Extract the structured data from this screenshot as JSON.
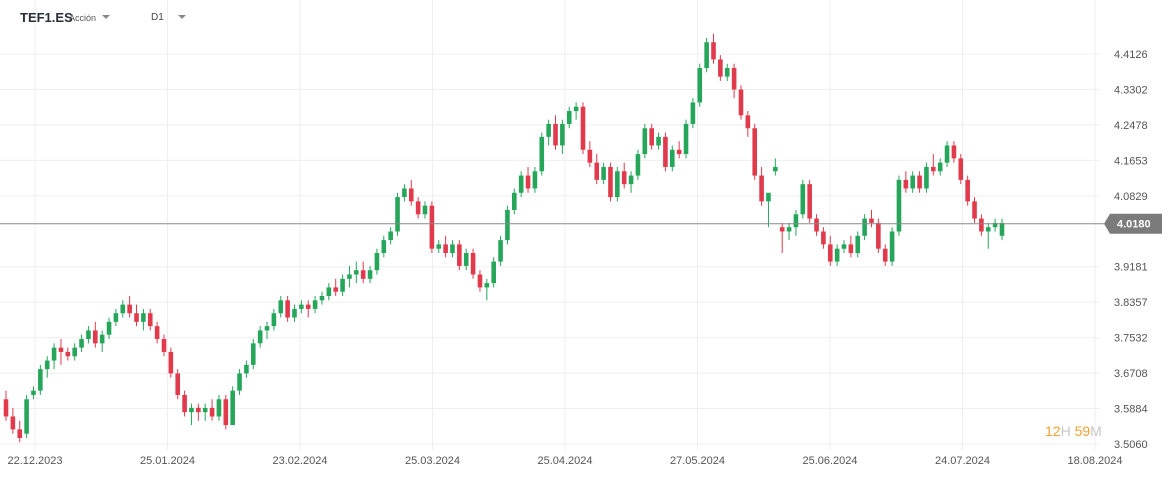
{
  "header": {
    "symbol": "TEF1.ES",
    "asset_type": "Acción",
    "timeframe": "D1"
  },
  "timer": {
    "hours": "12",
    "hours_label": "H",
    "minutes": "59",
    "minutes_label": "M"
  },
  "colors": {
    "up": "#26a65b",
    "down": "#e03a4c",
    "grid": "#efefef",
    "price_line": "#8a8a8a",
    "price_tag": "#7b7b7b",
    "axis_text": "#555555"
  },
  "chart_data": {
    "type": "candlestick",
    "ylim": [
      3.48,
      4.48
    ],
    "y_ticks": [
      "4.4126",
      "4.3302",
      "4.2478",
      "4.1653",
      "4.0829",
      "3.9181",
      "3.8357",
      "3.7532",
      "3.6708",
      "3.5884",
      "3.5060"
    ],
    "x_tick_labels": [
      "22.12.2023",
      "25.01.2024",
      "23.02.2024",
      "25.03.2024",
      "25.04.2024",
      "27.05.2024",
      "25.06.2024",
      "24.07.2024",
      "18.08.2024"
    ],
    "last_price": 4.018,
    "last_price_label": "4.0180",
    "candles": [
      [
        3.61,
        3.63,
        3.56,
        3.57
      ],
      [
        3.57,
        3.59,
        3.53,
        3.54
      ],
      [
        3.54,
        3.56,
        3.51,
        3.52
      ],
      [
        3.53,
        3.62,
        3.52,
        3.61
      ],
      [
        3.62,
        3.64,
        3.61,
        3.63
      ],
      [
        3.63,
        3.69,
        3.62,
        3.68
      ],
      [
        3.68,
        3.71,
        3.66,
        3.7
      ],
      [
        3.7,
        3.74,
        3.68,
        3.73
      ],
      [
        3.73,
        3.75,
        3.69,
        3.72
      ],
      [
        3.72,
        3.73,
        3.7,
        3.71
      ],
      [
        3.71,
        3.74,
        3.7,
        3.73
      ],
      [
        3.73,
        3.76,
        3.72,
        3.75
      ],
      [
        3.75,
        3.78,
        3.74,
        3.77
      ],
      [
        3.77,
        3.79,
        3.73,
        3.74
      ],
      [
        3.74,
        3.77,
        3.72,
        3.76
      ],
      [
        3.76,
        3.8,
        3.75,
        3.79
      ],
      [
        3.79,
        3.82,
        3.78,
        3.81
      ],
      [
        3.81,
        3.84,
        3.8,
        3.83
      ],
      [
        3.83,
        3.85,
        3.8,
        3.81
      ],
      [
        3.81,
        3.83,
        3.78,
        3.79
      ],
      [
        3.79,
        3.82,
        3.77,
        3.81
      ],
      [
        3.81,
        3.82,
        3.77,
        3.78
      ],
      [
        3.78,
        3.79,
        3.74,
        3.75
      ],
      [
        3.75,
        3.76,
        3.71,
        3.72
      ],
      [
        3.72,
        3.73,
        3.66,
        3.67
      ],
      [
        3.67,
        3.68,
        3.61,
        3.62
      ],
      [
        3.62,
        3.63,
        3.57,
        3.58
      ],
      [
        3.58,
        3.6,
        3.55,
        3.59
      ],
      [
        3.59,
        3.6,
        3.56,
        3.58
      ],
      [
        3.58,
        3.6,
        3.56,
        3.59
      ],
      [
        3.59,
        3.61,
        3.56,
        3.57
      ],
      [
        3.57,
        3.62,
        3.56,
        3.61
      ],
      [
        3.61,
        3.62,
        3.54,
        3.55
      ],
      [
        3.55,
        3.64,
        3.55,
        3.63
      ],
      [
        3.63,
        3.68,
        3.62,
        3.67
      ],
      [
        3.67,
        3.7,
        3.66,
        3.69
      ],
      [
        3.69,
        3.75,
        3.68,
        3.74
      ],
      [
        3.74,
        3.78,
        3.73,
        3.77
      ],
      [
        3.77,
        3.79,
        3.75,
        3.78
      ],
      [
        3.78,
        3.82,
        3.77,
        3.81
      ],
      [
        3.81,
        3.85,
        3.8,
        3.84
      ],
      [
        3.84,
        3.85,
        3.79,
        3.8
      ],
      [
        3.8,
        3.83,
        3.79,
        3.82
      ],
      [
        3.82,
        3.84,
        3.81,
        3.83
      ],
      [
        3.83,
        3.84,
        3.8,
        3.82
      ],
      [
        3.82,
        3.85,
        3.81,
        3.84
      ],
      [
        3.84,
        3.86,
        3.83,
        3.85
      ],
      [
        3.85,
        3.88,
        3.84,
        3.87
      ],
      [
        3.87,
        3.89,
        3.85,
        3.86
      ],
      [
        3.86,
        3.9,
        3.85,
        3.89
      ],
      [
        3.89,
        3.92,
        3.87,
        3.9
      ],
      [
        3.9,
        3.93,
        3.88,
        3.91
      ],
      [
        3.91,
        3.93,
        3.88,
        3.89
      ],
      [
        3.89,
        3.92,
        3.88,
        3.91
      ],
      [
        3.91,
        3.96,
        3.9,
        3.95
      ],
      [
        3.95,
        3.99,
        3.94,
        3.98
      ],
      [
        3.98,
        4.01,
        3.97,
        4.0
      ],
      [
        4.0,
        4.09,
        3.99,
        4.08
      ],
      [
        4.08,
        4.11,
        4.07,
        4.1
      ],
      [
        4.1,
        4.12,
        4.06,
        4.07
      ],
      [
        4.07,
        4.08,
        4.03,
        4.04
      ],
      [
        4.04,
        4.07,
        4.03,
        4.06
      ],
      [
        4.06,
        4.07,
        3.95,
        3.96
      ],
      [
        3.96,
        3.98,
        3.95,
        3.97
      ],
      [
        3.97,
        3.99,
        3.94,
        3.95
      ],
      [
        3.95,
        3.98,
        3.94,
        3.97
      ],
      [
        3.97,
        3.98,
        3.91,
        3.92
      ],
      [
        3.92,
        3.96,
        3.91,
        3.95
      ],
      [
        3.95,
        3.96,
        3.89,
        3.9
      ],
      [
        3.9,
        3.91,
        3.86,
        3.87
      ],
      [
        3.87,
        3.89,
        3.84,
        3.88
      ],
      [
        3.88,
        3.94,
        3.87,
        3.93
      ],
      [
        3.93,
        3.99,
        3.92,
        3.98
      ],
      [
        3.98,
        4.06,
        3.97,
        4.05
      ],
      [
        4.05,
        4.1,
        4.04,
        4.09
      ],
      [
        4.09,
        4.14,
        4.08,
        4.13
      ],
      [
        4.13,
        4.15,
        4.09,
        4.1
      ],
      [
        4.1,
        4.15,
        4.09,
        4.14
      ],
      [
        4.14,
        4.23,
        4.13,
        4.22
      ],
      [
        4.22,
        4.26,
        4.2,
        4.25
      ],
      [
        4.25,
        4.27,
        4.19,
        4.2
      ],
      [
        4.2,
        4.26,
        4.18,
        4.25
      ],
      [
        4.25,
        4.29,
        4.24,
        4.28
      ],
      [
        4.28,
        4.3,
        4.26,
        4.29
      ],
      [
        4.29,
        4.3,
        4.18,
        4.19
      ],
      [
        4.19,
        4.21,
        4.15,
        4.16
      ],
      [
        4.16,
        4.18,
        4.11,
        4.12
      ],
      [
        4.12,
        4.16,
        4.11,
        4.15
      ],
      [
        4.15,
        4.16,
        4.07,
        4.08
      ],
      [
        4.08,
        4.15,
        4.07,
        4.14
      ],
      [
        4.14,
        4.16,
        4.1,
        4.11
      ],
      [
        4.11,
        4.14,
        4.09,
        4.13
      ],
      [
        4.13,
        4.19,
        4.12,
        4.18
      ],
      [
        4.18,
        4.25,
        4.17,
        4.24
      ],
      [
        4.24,
        4.25,
        4.19,
        4.2
      ],
      [
        4.2,
        4.23,
        4.19,
        4.22
      ],
      [
        4.22,
        4.23,
        4.14,
        4.15
      ],
      [
        4.15,
        4.2,
        4.14,
        4.19
      ],
      [
        4.19,
        4.21,
        4.17,
        4.18
      ],
      [
        4.18,
        4.26,
        4.17,
        4.25
      ],
      [
        4.25,
        4.31,
        4.24,
        4.3
      ],
      [
        4.3,
        4.39,
        4.29,
        4.38
      ],
      [
        4.38,
        4.45,
        4.37,
        4.44
      ],
      [
        4.44,
        4.46,
        4.39,
        4.4
      ],
      [
        4.4,
        4.41,
        4.35,
        4.36
      ],
      [
        4.36,
        4.39,
        4.35,
        4.38
      ],
      [
        4.38,
        4.39,
        4.31,
        4.33
      ],
      [
        4.33,
        4.34,
        4.26,
        4.27
      ],
      [
        4.27,
        4.28,
        4.22,
        4.24
      ],
      [
        4.24,
        4.25,
        4.12,
        4.13
      ],
      [
        4.13,
        4.15,
        4.06,
        4.07
      ],
      [
        4.07,
        4.08,
        4.01,
        4.09
      ],
      [
        4.14,
        4.17,
        4.13,
        4.15
      ],
      [
        4.01,
        4.02,
        3.95,
        4.0
      ],
      [
        4.0,
        4.02,
        3.98,
        4.01
      ],
      [
        4.01,
        4.05,
        3.99,
        4.04
      ],
      [
        4.04,
        4.12,
        4.03,
        4.11
      ],
      [
        4.11,
        4.12,
        4.02,
        4.03
      ],
      [
        4.03,
        4.04,
        3.99,
        4.0
      ],
      [
        4.0,
        4.01,
        3.96,
        3.97
      ],
      [
        3.97,
        3.99,
        3.92,
        3.93
      ],
      [
        3.93,
        3.97,
        3.92,
        3.96
      ],
      [
        3.96,
        3.98,
        3.95,
        3.97
      ],
      [
        3.97,
        3.99,
        3.94,
        3.95
      ],
      [
        3.95,
        4.0,
        3.94,
        3.99
      ],
      [
        3.99,
        4.04,
        3.98,
        4.03
      ],
      [
        4.03,
        4.05,
        4.01,
        4.02
      ],
      [
        4.02,
        4.03,
        3.95,
        3.96
      ],
      [
        3.96,
        3.97,
        3.92,
        3.93
      ],
      [
        3.93,
        4.01,
        3.92,
        4.0
      ],
      [
        4.0,
        4.13,
        3.99,
        4.12
      ],
      [
        4.12,
        4.14,
        4.09,
        4.1
      ],
      [
        4.1,
        4.14,
        4.09,
        4.13
      ],
      [
        4.13,
        4.14,
        4.09,
        4.1
      ],
      [
        4.1,
        4.16,
        4.09,
        4.15
      ],
      [
        4.15,
        4.18,
        4.13,
        4.14
      ],
      [
        4.14,
        4.17,
        4.13,
        4.16
      ],
      [
        4.16,
        4.21,
        4.15,
        4.2
      ],
      [
        4.2,
        4.21,
        4.16,
        4.17
      ],
      [
        4.17,
        4.18,
        4.11,
        4.12
      ],
      [
        4.12,
        4.13,
        4.06,
        4.07
      ],
      [
        4.07,
        4.08,
        4.02,
        4.03
      ],
      [
        4.03,
        4.04,
        3.99,
        4.0
      ],
      [
        4.0,
        4.02,
        3.96,
        4.01
      ],
      [
        4.01,
        4.03,
        4.0,
        4.02
      ],
      [
        3.99,
        4.03,
        3.98,
        4.02
      ]
    ]
  }
}
